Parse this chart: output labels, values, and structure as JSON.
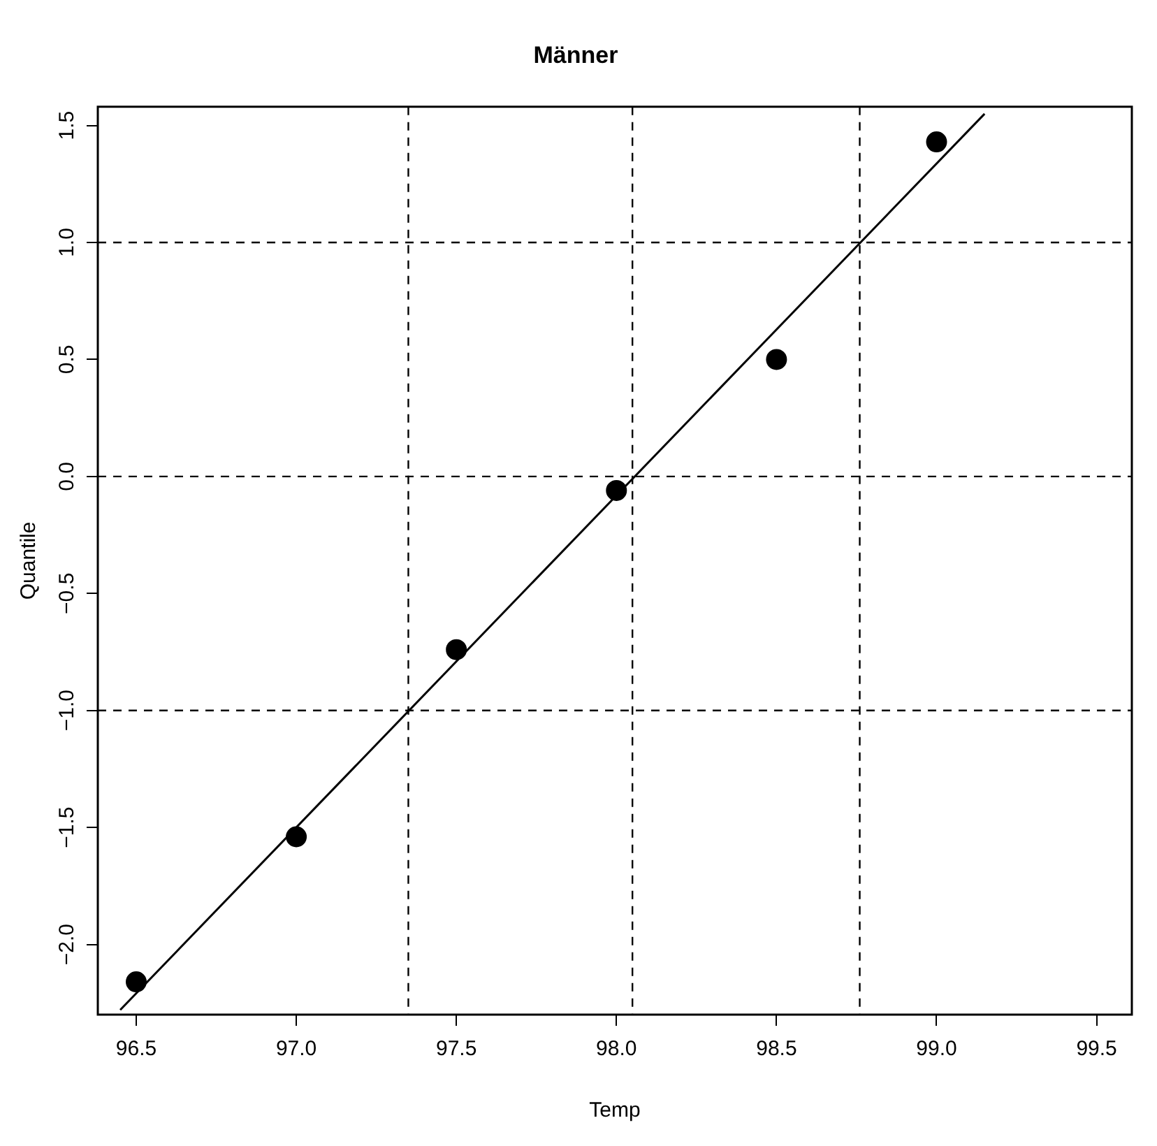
{
  "chart_data": {
    "type": "scatter",
    "title": "Männer",
    "xlabel": "Temp",
    "ylabel": "Quantile",
    "marker": "circle",
    "grid": false,
    "legend": false,
    "xlim": [
      96.38,
      99.61
    ],
    "ylim": [
      -2.3,
      1.58
    ],
    "xticks": [
      {
        "value": 96.5,
        "label": "96.5"
      },
      {
        "value": 97,
        "label": "97.0"
      },
      {
        "value": 97.5,
        "label": "97.5"
      },
      {
        "value": 98,
        "label": "98.0"
      },
      {
        "value": 98.5,
        "label": "98.5"
      },
      {
        "value": 99,
        "label": "99.0"
      },
      {
        "value": 99.5,
        "label": "99.5"
      }
    ],
    "yticks": [
      {
        "value": -2,
        "label": "−2.0"
      },
      {
        "value": -1.5,
        "label": "−1.5"
      },
      {
        "value": -1,
        "label": "−1.0"
      },
      {
        "value": -0.5,
        "label": "−0.5"
      },
      {
        "value": 0,
        "label": "0.0"
      },
      {
        "value": 0.5,
        "label": "0.5"
      },
      {
        "value": 1,
        "label": "1.0"
      },
      {
        "value": 1.5,
        "label": "1.5"
      }
    ],
    "ref_lines": [
      {
        "axis": "x",
        "value": 97.35,
        "line_style": "dashed",
        "color": "#000000"
      },
      {
        "axis": "x",
        "value": 98.05,
        "line_style": "dashed",
        "color": "#000000"
      },
      {
        "axis": "x",
        "value": 98.76,
        "line_style": "dashed",
        "color": "#000000"
      },
      {
        "axis": "y",
        "value": -1,
        "line_style": "dashed",
        "color": "#000000"
      },
      {
        "axis": "y",
        "value": 0,
        "line_style": "dashed",
        "color": "#000000"
      },
      {
        "axis": "y",
        "value": 1,
        "line_style": "dashed",
        "color": "#000000"
      }
    ],
    "series": [
      {
        "color": "#000000",
        "x": [
          96.5,
          97.0,
          97.5,
          98.0,
          98.5,
          99.0
        ],
        "values": [
          -2.16,
          -1.54,
          -0.74,
          -0.06,
          0.5,
          1.43
        ]
      },
      {
        "type": "line",
        "color": "#000000",
        "marker": "none",
        "line_style": "solid",
        "x": [
          96.45,
          99.15
        ],
        "values": [
          -2.28,
          1.55
        ]
      }
    ]
  }
}
